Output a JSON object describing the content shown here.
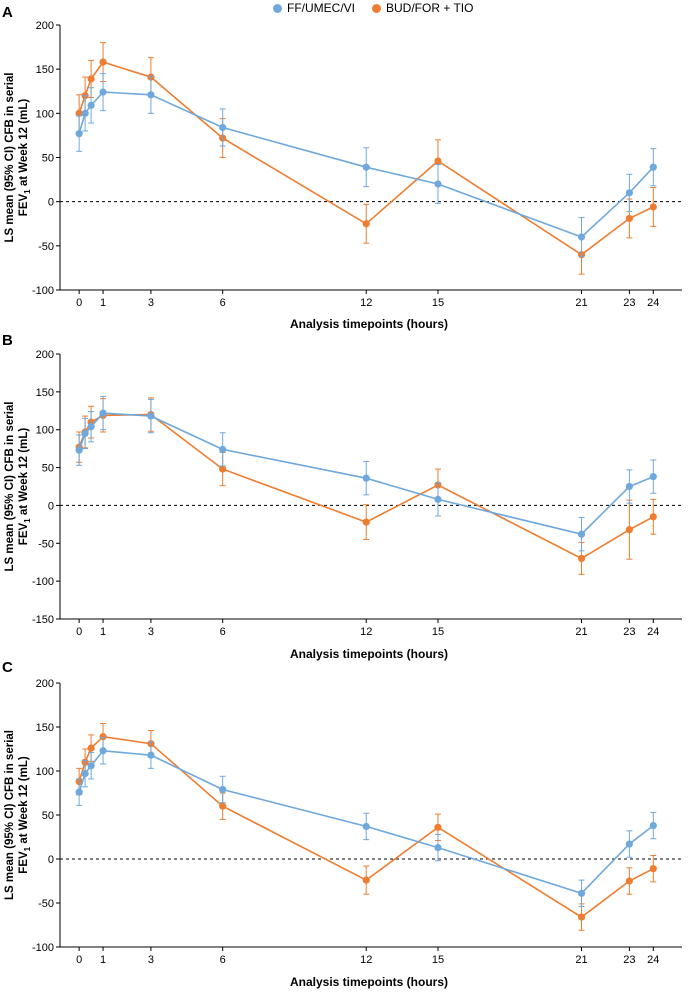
{
  "legend": [
    {
      "name": "FF/UMEC/VI",
      "color": "#6fa8dc"
    },
    {
      "name": "BUD/FOR + TIO",
      "color": "#ed7d31"
    }
  ],
  "colors": {
    "blue": "#6fa8dc",
    "orange": "#ed7d31"
  },
  "chart_data": [
    {
      "type": "line",
      "panel": "A",
      "xlabel": "Analysis timepoints (hours)",
      "ylabel_line1": "LS mean (95% CI) CFB in serial",
      "ylabel_line2": "FEV",
      "ylabel_sub": "1",
      "ylabel_line2_end": " at Week 12 (mL)",
      "xticks": [
        0,
        1,
        3,
        6,
        12,
        15,
        21,
        23,
        24
      ],
      "ylim": [
        -100,
        200
      ],
      "yticks": [
        -100,
        -50,
        0,
        50,
        100,
        150,
        200
      ],
      "xlim": [
        -0.8,
        25.2
      ],
      "series": [
        {
          "name": "FF/UMEC/VI",
          "color": "#6fa8dc",
          "x": [
            0,
            0.25,
            0.5,
            1,
            3,
            6,
            12,
            15,
            21,
            23,
            24
          ],
          "y": [
            77,
            100,
            109,
            124,
            121,
            84,
            39,
            20,
            -40,
            10,
            39
          ],
          "lo": [
            57,
            80,
            89,
            103,
            100,
            63,
            17,
            -2,
            -62,
            -11,
            18
          ],
          "hi": [
            97,
            120,
            129,
            145,
            142,
            105,
            61,
            42,
            -18,
            31,
            60
          ]
        },
        {
          "name": "BUD/FOR + TIO",
          "color": "#ed7d31",
          "x": [
            0,
            0.25,
            0.5,
            1,
            3,
            6,
            12,
            15,
            21,
            23,
            24
          ],
          "y": [
            100,
            120,
            139,
            158,
            141,
            72,
            -25,
            46,
            -60,
            -19,
            -6
          ],
          "lo": [
            79,
            99,
            118,
            136,
            119,
            50,
            -47,
            22,
            -82,
            -41,
            -28
          ],
          "hi": [
            121,
            141,
            160,
            180,
            163,
            94,
            -3,
            70,
            -38,
            3,
            16
          ]
        }
      ]
    },
    {
      "type": "line",
      "panel": "B",
      "xlabel": "Analysis timepoints (hours)",
      "ylabel_line1": "LS mean (95% CI) CFB in serial",
      "ylabel_line2": "FEV",
      "ylabel_sub": "1",
      "ylabel_line2_end": " at Week 12 (mL)",
      "xticks": [
        0,
        1,
        3,
        6,
        12,
        15,
        21,
        23,
        24
      ],
      "ylim": [
        -150,
        200
      ],
      "yticks": [
        -150,
        -100,
        -50,
        0,
        50,
        100,
        150,
        200
      ],
      "xlim": [
        -0.8,
        25.2
      ],
      "series": [
        {
          "name": "FF/UMEC/VI",
          "color": "#6fa8dc",
          "x": [
            0,
            0.25,
            0.5,
            1,
            3,
            6,
            12,
            15,
            21,
            23,
            24
          ],
          "y": [
            73,
            95,
            104,
            122,
            118,
            74,
            36,
            8,
            -38,
            25,
            38
          ],
          "lo": [
            53,
            75,
            84,
            100,
            96,
            52,
            14,
            -14,
            -60,
            3,
            16
          ],
          "hi": [
            93,
            115,
            124,
            144,
            140,
            96,
            58,
            30,
            -16,
            47,
            60
          ]
        },
        {
          "name": "BUD/FOR + TIO",
          "color": "#ed7d31",
          "x": [
            0,
            0.25,
            0.5,
            1,
            3,
            6,
            12,
            15,
            21,
            23,
            24
          ],
          "y": [
            77,
            97,
            110,
            119,
            120,
            48,
            -22,
            27,
            -70,
            -32,
            -15
          ],
          "lo": [
            57,
            76,
            89,
            97,
            98,
            26,
            -45,
            6,
            -91,
            -71,
            -38
          ],
          "hi": [
            97,
            118,
            131,
            141,
            142,
            70,
            1,
            48,
            -49,
            7,
            8
          ]
        }
      ]
    },
    {
      "type": "line",
      "panel": "C",
      "xlabel": "Analysis timepoints (hours)",
      "ylabel_line1": "LS mean (95% CI) CFB in serial",
      "ylabel_line2": "FEV",
      "ylabel_sub": "1",
      "ylabel_line2_end": " at Week 12 (mL)",
      "xticks": [
        0,
        1,
        3,
        6,
        12,
        15,
        21,
        23,
        24
      ],
      "ylim": [
        -100,
        200
      ],
      "yticks": [
        -100,
        -50,
        0,
        50,
        100,
        150,
        200
      ],
      "xlim": [
        -0.8,
        25.2
      ],
      "series": [
        {
          "name": "FF/UMEC/VI",
          "color": "#6fa8dc",
          "x": [
            0,
            0.25,
            0.5,
            1,
            3,
            6,
            12,
            15,
            21,
            23,
            24
          ],
          "y": [
            76,
            97,
            106,
            123,
            118,
            79,
            37,
            13,
            -39,
            17,
            38
          ],
          "lo": [
            61,
            82,
            91,
            108,
            103,
            64,
            22,
            -2,
            -54,
            2,
            23
          ],
          "hi": [
            91,
            112,
            121,
            138,
            133,
            94,
            52,
            28,
            -24,
            32,
            53
          ]
        },
        {
          "name": "BUD/FOR + TIO",
          "color": "#ed7d31",
          "x": [
            0,
            0.25,
            0.5,
            1,
            3,
            6,
            12,
            15,
            21,
            23,
            24
          ],
          "y": [
            88,
            110,
            126,
            139,
            131,
            60,
            -24,
            36,
            -66,
            -25,
            -11
          ],
          "lo": [
            73,
            95,
            111,
            124,
            116,
            45,
            -40,
            21,
            -81,
            -40,
            -26
          ],
          "hi": [
            103,
            125,
            141,
            154,
            146,
            75,
            -8,
            51,
            -51,
            -10,
            4
          ]
        }
      ]
    }
  ]
}
